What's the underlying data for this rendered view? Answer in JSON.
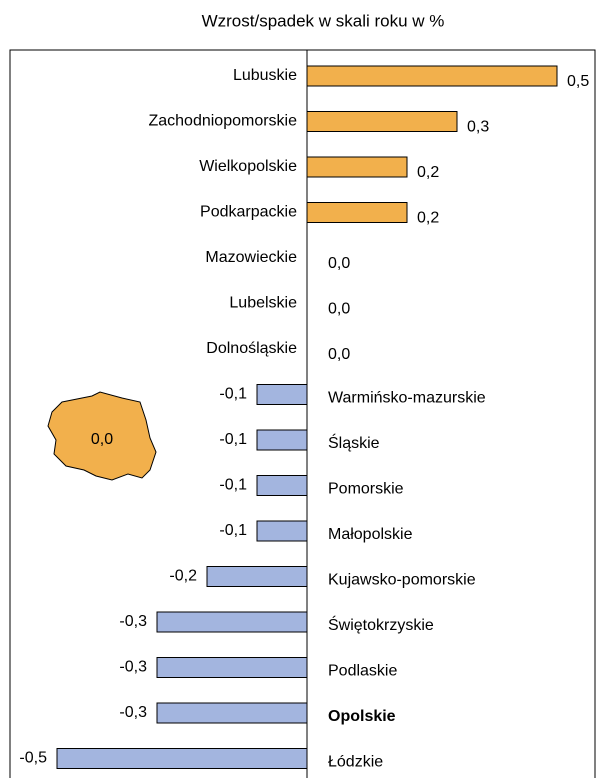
{
  "chart_data": {
    "type": "bar",
    "orientation": "horizontal",
    "title": "Wzrost/spadek w skali roku w %",
    "categories": [
      "Lubuskie",
      "Zachodniopomorskie",
      "Wielkopolskie",
      "Podkarpackie",
      "Mazowieckie",
      "Lubelskie",
      "Dolnośląskie",
      "Warmińsko-mazurskie",
      "Śląskie",
      "Pomorskie",
      "Małopolskie",
      "Kujawsko-pomorskie",
      "Świętokrzyskie",
      "Podlaskie",
      "Opolskie",
      "Łódzkie"
    ],
    "values": [
      0.5,
      0.3,
      0.2,
      0.2,
      0.0,
      0.0,
      0.0,
      -0.1,
      -0.1,
      -0.1,
      -0.1,
      -0.2,
      -0.3,
      -0.3,
      -0.3,
      -0.5
    ],
    "value_labels": [
      "0,5",
      "0,3",
      "0,2",
      "0,2",
      "0,0",
      "0,0",
      "0,0",
      "-0,1",
      "-0,1",
      "-0,1",
      "-0,1",
      "-0,2",
      "-0,3",
      "-0,3",
      "-0,3",
      "-0,5"
    ],
    "positive_color": "#F2B04C",
    "negative_color": "#A3B5DF",
    "bold_category_index": 14,
    "xlim": [
      -0.5,
      0.5
    ],
    "map_annotation": "0,0",
    "map_color": "#F2B04C"
  }
}
